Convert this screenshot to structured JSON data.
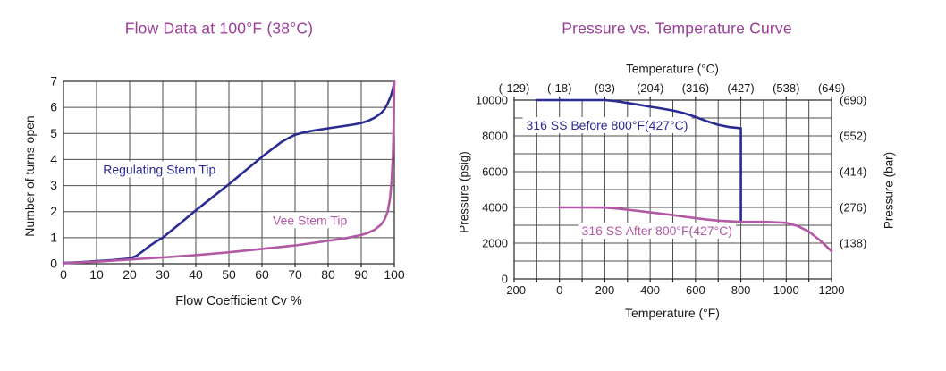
{
  "chart_data": [
    {
      "type": "line",
      "title": "Flow Data at 100°F (38°C)",
      "xlabel": "Flow Coefficient Cv %",
      "ylabel": "Number of turns open",
      "xlim": [
        0,
        100
      ],
      "ylim": [
        0,
        7
      ],
      "xticks": [
        0,
        10,
        20,
        30,
        40,
        50,
        60,
        70,
        80,
        90,
        100
      ],
      "yticks": [
        0,
        1,
        2,
        3,
        4,
        5,
        6,
        7
      ],
      "grid": true,
      "bottom_ticks": "major",
      "series": [
        {
          "name": "Regulating Stem Tip",
          "color": "#2b2b94",
          "label_x": 29,
          "label_y": 3.45,
          "points": [
            [
              0,
              0.03
            ],
            [
              5,
              0.06
            ],
            [
              10,
              0.1
            ],
            [
              15,
              0.14
            ],
            [
              20,
              0.2
            ],
            [
              22,
              0.3
            ],
            [
              24,
              0.48
            ],
            [
              26,
              0.68
            ],
            [
              28,
              0.85
            ],
            [
              30,
              1.0
            ],
            [
              35,
              1.52
            ],
            [
              40,
              2.05
            ],
            [
              45,
              2.55
            ],
            [
              50,
              3.05
            ],
            [
              55,
              3.58
            ],
            [
              60,
              4.1
            ],
            [
              63,
              4.4
            ],
            [
              66,
              4.68
            ],
            [
              68,
              4.82
            ],
            [
              70,
              4.95
            ],
            [
              73,
              5.05
            ],
            [
              76,
              5.12
            ],
            [
              80,
              5.2
            ],
            [
              84,
              5.27
            ],
            [
              88,
              5.35
            ],
            [
              90,
              5.4
            ],
            [
              92,
              5.48
            ],
            [
              94,
              5.6
            ],
            [
              96,
              5.78
            ],
            [
              97,
              5.92
            ],
            [
              98,
              6.15
            ],
            [
              99,
              6.45
            ],
            [
              99.6,
              6.72
            ],
            [
              100,
              7.0
            ]
          ]
        },
        {
          "name": "Vee Stem Tip",
          "color": "#b258a4",
          "label_x": 74.5,
          "label_y": 1.5,
          "points": [
            [
              0,
              0.02
            ],
            [
              10,
              0.08
            ],
            [
              20,
              0.16
            ],
            [
              30,
              0.24
            ],
            [
              40,
              0.33
            ],
            [
              50,
              0.44
            ],
            [
              60,
              0.57
            ],
            [
              70,
              0.7
            ],
            [
              80,
              0.88
            ],
            [
              85,
              0.97
            ],
            [
              90,
              1.1
            ],
            [
              92,
              1.18
            ],
            [
              94,
              1.3
            ],
            [
              96,
              1.5
            ],
            [
              97,
              1.68
            ],
            [
              98,
              2.0
            ],
            [
              98.7,
              2.5
            ],
            [
              99.2,
              3.2
            ],
            [
              99.6,
              4.2
            ],
            [
              99.85,
              5.5
            ],
            [
              100,
              7.0
            ]
          ]
        }
      ]
    },
    {
      "type": "line",
      "title": "Pressure vs. Temperature Curve",
      "xlabel": "Temperature (°F)",
      "ylabel": "Pressure (psig)",
      "top_xlabel": "Temperature (°C)",
      "right_ylabel": "Pressure (bar)",
      "xlim": [
        -200,
        1200
      ],
      "ylim": [
        0,
        10000
      ],
      "xticks": [
        -200,
        0,
        200,
        400,
        600,
        800,
        1000,
        1200
      ],
      "yticks": [
        0,
        2000,
        4000,
        6000,
        8000,
        10000
      ],
      "top_xticks": [
        {
          "x": -200,
          "label": "(-129)"
        },
        {
          "x": 0,
          "label": "(-18)"
        },
        {
          "x": 200,
          "label": "(93)"
        },
        {
          "x": 400,
          "label": "(204)"
        },
        {
          "x": 600,
          "label": "(316)"
        },
        {
          "x": 800,
          "label": "(427)"
        },
        {
          "x": 1000,
          "label": "(538)"
        },
        {
          "x": 1200,
          "label": "(649)"
        }
      ],
      "right_yticks": [
        {
          "y": 10000,
          "label": "(690)"
        },
        {
          "y": 8000,
          "label": "(552)"
        },
        {
          "y": 6000,
          "label": "(414)"
        },
        {
          "y": 4000,
          "label": "(276)"
        },
        {
          "y": 2000,
          "label": "(138)"
        }
      ],
      "x_grid_step": 100,
      "y_grid_step": 1000,
      "grid": true,
      "bottom_ticks": "grid",
      "top_ticks": "major",
      "series": [
        {
          "name": "316 SS Before 800°F(427°C)",
          "color": "#2b2b94",
          "label_x": 210,
          "label_y": 8350,
          "points": [
            [
              -100,
              10000
            ],
            [
              0,
              10000
            ],
            [
              100,
              10000
            ],
            [
              200,
              10000
            ],
            [
              250,
              9940
            ],
            [
              300,
              9840
            ],
            [
              350,
              9740
            ],
            [
              400,
              9630
            ],
            [
              450,
              9530
            ],
            [
              500,
              9420
            ],
            [
              550,
              9270
            ],
            [
              600,
              9060
            ],
            [
              650,
              8820
            ],
            [
              700,
              8620
            ],
            [
              750,
              8490
            ],
            [
              800,
              8430
            ],
            [
              800,
              3190
            ]
          ]
        },
        {
          "name": "316 SS After 800°F(427°C)",
          "color": "#b258a4",
          "label_x": 430,
          "label_y": 2450,
          "points": [
            [
              0,
              4000
            ],
            [
              100,
              4000
            ],
            [
              200,
              3990
            ],
            [
              250,
              3940
            ],
            [
              300,
              3870
            ],
            [
              350,
              3800
            ],
            [
              400,
              3720
            ],
            [
              450,
              3650
            ],
            [
              500,
              3570
            ],
            [
              550,
              3480
            ],
            [
              600,
              3400
            ],
            [
              650,
              3320
            ],
            [
              700,
              3260
            ],
            [
              750,
              3220
            ],
            [
              800,
              3190
            ],
            [
              900,
              3190
            ],
            [
              1000,
              3140
            ],
            [
              1050,
              2960
            ],
            [
              1100,
              2650
            ],
            [
              1150,
              2150
            ],
            [
              1200,
              1550
            ]
          ]
        }
      ]
    }
  ]
}
